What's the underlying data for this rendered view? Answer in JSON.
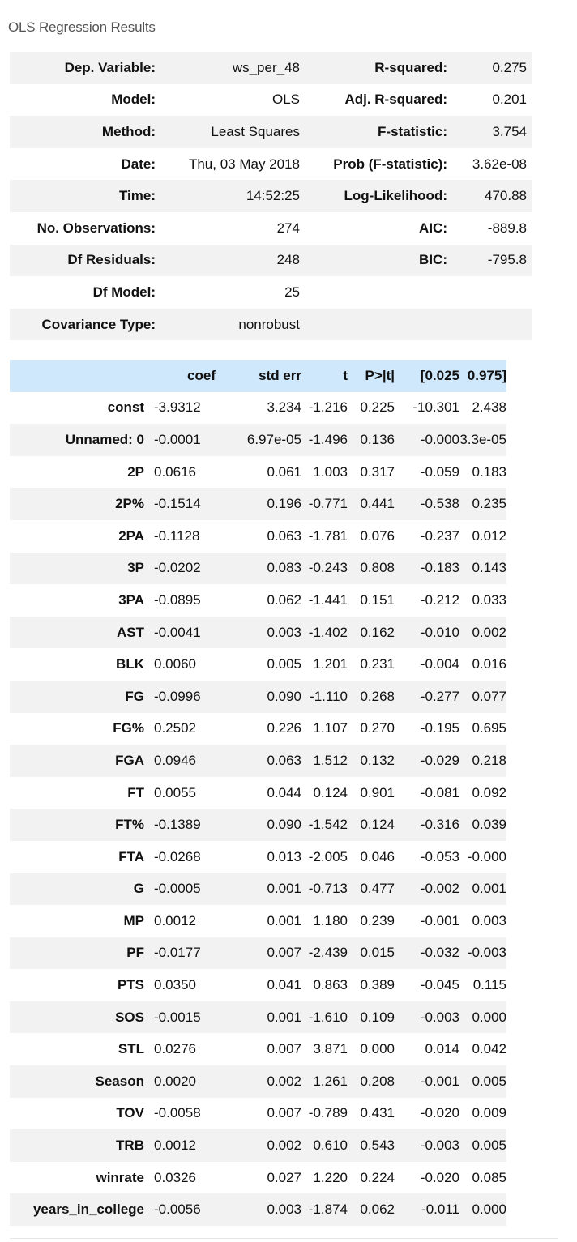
{
  "caption": "OLS Regression Results",
  "summary": [
    [
      "Dep. Variable:",
      "ws_per_48",
      "R-squared:",
      "0.275"
    ],
    [
      "Model:",
      "OLS",
      "Adj. R-squared:",
      "0.201"
    ],
    [
      "Method:",
      "Least Squares",
      "F-statistic:",
      "3.754"
    ],
    [
      "Date:",
      "Thu, 03 May 2018",
      "Prob (F-statistic):",
      "3.62e-08"
    ],
    [
      "Time:",
      "14:52:25",
      "Log-Likelihood:",
      "470.88"
    ],
    [
      "No. Observations:",
      "274",
      "AIC:",
      "-889.8"
    ],
    [
      "Df Residuals:",
      "248",
      "BIC:",
      "-795.8"
    ],
    [
      "Df Model:",
      "25",
      "",
      ""
    ],
    [
      "Covariance Type:",
      "nonrobust",
      "",
      ""
    ]
  ],
  "coef_headers": [
    "",
    "coef",
    "std err",
    "t",
    "P>|t|",
    "[0.025",
    "0.975]"
  ],
  "coef_rows": [
    [
      "const",
      "-3.9312",
      "3.234",
      "-1.216",
      "0.225",
      "-10.301",
      "2.438"
    ],
    [
      "Unnamed: 0",
      "-0.0001",
      "6.97e-05",
      "-1.496",
      "0.136",
      "-0.000",
      "3.3e-05"
    ],
    [
      "2P",
      "0.0616",
      "0.061",
      "1.003",
      "0.317",
      "-0.059",
      "0.183"
    ],
    [
      "2P%",
      "-0.1514",
      "0.196",
      "-0.771",
      "0.441",
      "-0.538",
      "0.235"
    ],
    [
      "2PA",
      "-0.1128",
      "0.063",
      "-1.781",
      "0.076",
      "-0.237",
      "0.012"
    ],
    [
      "3P",
      "-0.0202",
      "0.083",
      "-0.243",
      "0.808",
      "-0.183",
      "0.143"
    ],
    [
      "3PA",
      "-0.0895",
      "0.062",
      "-1.441",
      "0.151",
      "-0.212",
      "0.033"
    ],
    [
      "AST",
      "-0.0041",
      "0.003",
      "-1.402",
      "0.162",
      "-0.010",
      "0.002"
    ],
    [
      "BLK",
      "0.0060",
      "0.005",
      "1.201",
      "0.231",
      "-0.004",
      "0.016"
    ],
    [
      "FG",
      "-0.0996",
      "0.090",
      "-1.110",
      "0.268",
      "-0.277",
      "0.077"
    ],
    [
      "FG%",
      "0.2502",
      "0.226",
      "1.107",
      "0.270",
      "-0.195",
      "0.695"
    ],
    [
      "FGA",
      "0.0946",
      "0.063",
      "1.512",
      "0.132",
      "-0.029",
      "0.218"
    ],
    [
      "FT",
      "0.0055",
      "0.044",
      "0.124",
      "0.901",
      "-0.081",
      "0.092"
    ],
    [
      "FT%",
      "-0.1389",
      "0.090",
      "-1.542",
      "0.124",
      "-0.316",
      "0.039"
    ],
    [
      "FTA",
      "-0.0268",
      "0.013",
      "-2.005",
      "0.046",
      "-0.053",
      "-0.000"
    ],
    [
      "G",
      "-0.0005",
      "0.001",
      "-0.713",
      "0.477",
      "-0.002",
      "0.001"
    ],
    [
      "MP",
      "0.0012",
      "0.001",
      "1.180",
      "0.239",
      "-0.001",
      "0.003"
    ],
    [
      "PF",
      "-0.0177",
      "0.007",
      "-2.439",
      "0.015",
      "-0.032",
      "-0.003"
    ],
    [
      "PTS",
      "0.0350",
      "0.041",
      "0.863",
      "0.389",
      "-0.045",
      "0.115"
    ],
    [
      "SOS",
      "-0.0015",
      "0.001",
      "-1.610",
      "0.109",
      "-0.003",
      "0.000"
    ],
    [
      "STL",
      "0.0276",
      "0.007",
      "3.871",
      "0.000",
      "0.014",
      "0.042"
    ],
    [
      "Season",
      "0.0020",
      "0.002",
      "1.261",
      "0.208",
      "-0.001",
      "0.005"
    ],
    [
      "TOV",
      "-0.0058",
      "0.007",
      "-0.789",
      "0.431",
      "-0.020",
      "0.009"
    ],
    [
      "TRB",
      "0.0012",
      "0.002",
      "0.610",
      "0.543",
      "-0.003",
      "0.005"
    ],
    [
      "winrate",
      "0.0326",
      "0.027",
      "1.220",
      "0.224",
      "-0.020",
      "0.085"
    ],
    [
      "years_in_college",
      "-0.0056",
      "0.003",
      "-1.874",
      "0.062",
      "-0.011",
      "0.000"
    ]
  ]
}
